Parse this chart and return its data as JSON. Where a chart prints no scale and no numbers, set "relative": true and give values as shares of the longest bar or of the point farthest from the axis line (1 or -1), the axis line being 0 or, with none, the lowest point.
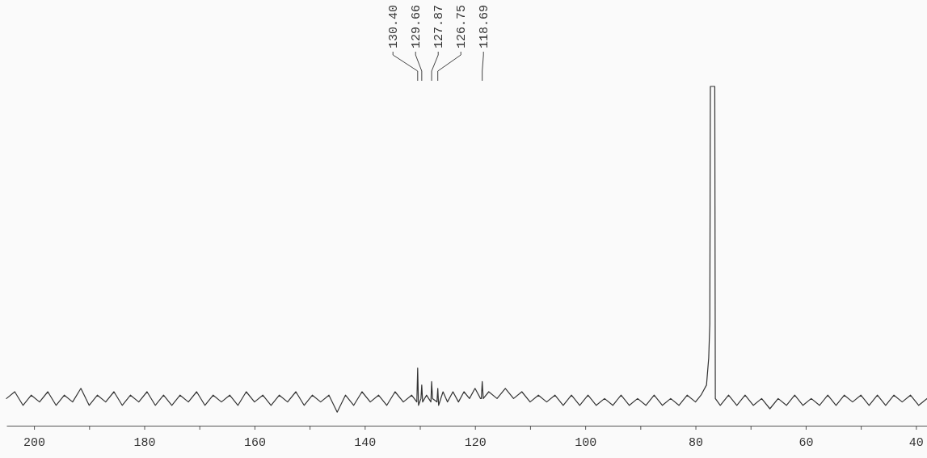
{
  "chart_data": {
    "type": "line",
    "relative": true,
    "color": "#333333",
    "x": [
      205,
      203.5,
      202,
      200.5,
      199,
      197.5,
      196,
      194.5,
      193,
      191.5,
      190,
      188.5,
      187,
      185.5,
      184,
      182.5,
      181,
      179.5,
      178,
      176.5,
      175,
      173.5,
      172,
      170.5,
      169,
      167.5,
      166,
      164.5,
      163,
      161.5,
      160,
      158.5,
      157,
      155.5,
      154,
      152.5,
      151,
      149.5,
      148,
      146.5,
      145,
      143.5,
      142,
      140.5,
      139,
      137.5,
      136,
      134.5,
      133,
      131.5,
      130.55,
      130.4,
      130.25,
      129.8,
      129.66,
      129.5,
      128.8,
      128.0,
      127.87,
      127.7,
      126.9,
      126.75,
      126.6,
      125.8,
      125,
      124,
      123,
      122,
      121,
      120,
      119,
      118.85,
      118.69,
      118.5,
      117.5,
      116,
      114.5,
      113,
      111.5,
      110,
      108.5,
      107,
      105.5,
      104,
      102.5,
      101,
      99.5,
      98,
      96.5,
      95,
      93.5,
      92,
      90.5,
      89,
      87.5,
      86,
      84.5,
      83,
      81.5,
      80,
      79,
      78,
      77.6,
      77.4,
      77.3,
      76.5,
      76.4,
      75.5,
      74,
      72.5,
      71,
      69.5,
      68,
      66.5,
      65,
      63.5,
      62,
      60.5,
      59,
      57.5,
      56,
      54.5,
      53,
      51.5,
      50,
      48.5,
      47,
      45.5,
      44,
      42.5,
      41,
      39.5,
      38
    ],
    "values": [
      0.08,
      0.1,
      0.06,
      0.09,
      0.07,
      0.1,
      0.06,
      0.09,
      0.07,
      0.11,
      0.06,
      0.09,
      0.07,
      0.1,
      0.06,
      0.09,
      0.07,
      0.1,
      0.06,
      0.09,
      0.06,
      0.09,
      0.07,
      0.1,
      0.06,
      0.09,
      0.07,
      0.09,
      0.06,
      0.1,
      0.07,
      0.09,
      0.06,
      0.09,
      0.07,
      0.1,
      0.06,
      0.09,
      0.07,
      0.09,
      0.04,
      0.09,
      0.06,
      0.1,
      0.07,
      0.09,
      0.06,
      0.1,
      0.07,
      0.09,
      0.07,
      0.17,
      0.06,
      0.08,
      0.12,
      0.07,
      0.09,
      0.07,
      0.13,
      0.08,
      0.07,
      0.11,
      0.06,
      0.1,
      0.07,
      0.1,
      0.07,
      0.1,
      0.08,
      0.11,
      0.08,
      0.08,
      0.13,
      0.08,
      0.1,
      0.08,
      0.11,
      0.08,
      0.1,
      0.07,
      0.09,
      0.07,
      0.09,
      0.06,
      0.09,
      0.06,
      0.09,
      0.06,
      0.08,
      0.06,
      0.09,
      0.06,
      0.08,
      0.06,
      0.09,
      0.06,
      0.08,
      0.06,
      0.09,
      0.07,
      0.09,
      0.12,
      0.2,
      0.3,
      1.0,
      1.0,
      0.08,
      0.06,
      0.09,
      0.06,
      0.09,
      0.06,
      0.08,
      0.05,
      0.08,
      0.06,
      0.09,
      0.06,
      0.08,
      0.06,
      0.09,
      0.06,
      0.09,
      0.07,
      0.09,
      0.06,
      0.09,
      0.06,
      0.09,
      0.07,
      0.09,
      0.06,
      0.08
    ],
    "xlim": [
      205,
      38
    ],
    "xticks": [
      200,
      {
        "value": 190,
        "label": null
      },
      180,
      {
        "value": 170,
        "label": null
      },
      160,
      {
        "value": 150,
        "label": null
      },
      140,
      {
        "value": 130,
        "label": null
      },
      120,
      {
        "value": 110,
        "label": null
      },
      100,
      {
        "value": 90,
        "label": null
      },
      80,
      {
        "value": 70,
        "label": null
      },
      60,
      {
        "value": 50,
        "label": null
      },
      40
    ],
    "annotations": [
      {
        "text": "130.40",
        "x": 130.4
      },
      {
        "text": "129.66",
        "x": 129.66
      },
      {
        "text": "127.87",
        "x": 127.87
      },
      {
        "text": "126.75",
        "x": 126.75
      },
      {
        "text": "118.69",
        "x": 118.69
      }
    ]
  }
}
